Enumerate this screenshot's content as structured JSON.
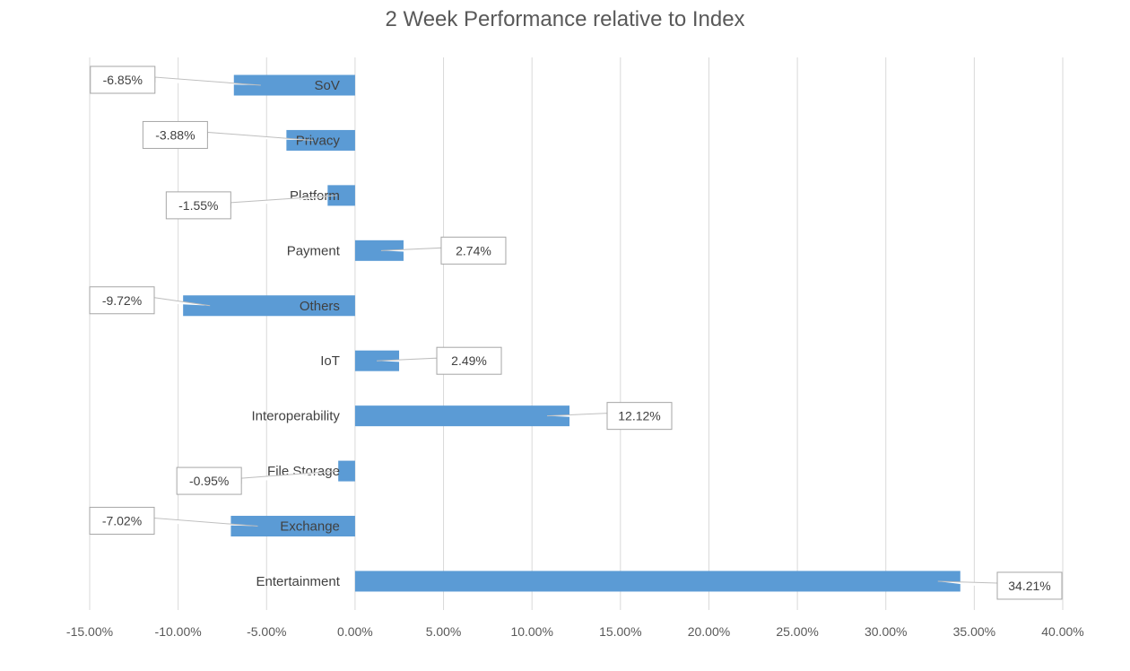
{
  "chart_data": {
    "type": "bar",
    "orientation": "horizontal",
    "title": "2 Week Performance relative to Index",
    "xlabel": "",
    "ylabel": "",
    "categories": [
      "SoV",
      "Privacy",
      "Platform",
      "Payment",
      "Others",
      "IoT",
      "Interoperability",
      "File Storage",
      "Exchange",
      "Entertainment"
    ],
    "values": [
      -6.85,
      -3.88,
      -1.55,
      2.74,
      -9.72,
      2.49,
      12.12,
      -0.95,
      -7.02,
      34.21
    ],
    "data_labels": [
      "-6.85%",
      "-3.88%",
      "-1.55%",
      "2.74%",
      "-9.72%",
      "2.49%",
      "12.12%",
      "-0.95%",
      "-7.02%",
      "34.21%"
    ],
    "xlim": [
      -15,
      40
    ],
    "x_ticks": [
      -15,
      -10,
      -5,
      0,
      5,
      10,
      15,
      20,
      25,
      30,
      35,
      40
    ],
    "x_tick_labels": [
      "-15.00%",
      "-10.00%",
      "-5.00%",
      "0.00%",
      "5.00%",
      "10.00%",
      "15.00%",
      "20.00%",
      "25.00%",
      "30.00%",
      "35.00%",
      "40.00%"
    ],
    "grid": "vertical",
    "legend": "none",
    "bar_color": "#5B9BD5"
  }
}
